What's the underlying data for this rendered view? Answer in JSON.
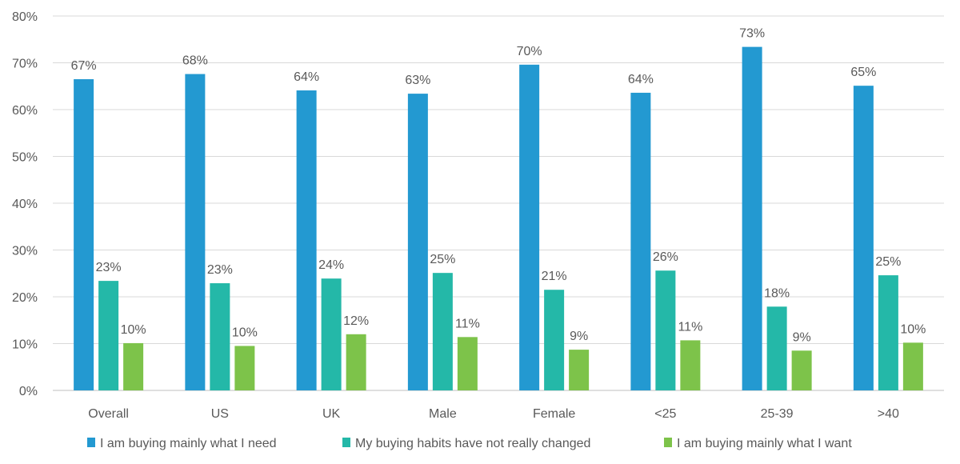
{
  "chart_data": {
    "type": "bar",
    "title": "",
    "xlabel": "",
    "ylabel": "",
    "ylim": [
      0,
      80
    ],
    "yticks": [
      0,
      10,
      20,
      30,
      40,
      50,
      60,
      70,
      80
    ],
    "ytick_labels": [
      "0%",
      "10%",
      "20%",
      "30%",
      "40%",
      "50%",
      "60%",
      "70%",
      "80%"
    ],
    "grid": true,
    "legend_position": "bottom",
    "categories": [
      "Overall",
      "US",
      "UK",
      "Male",
      "Female",
      "<25",
      "25-39",
      ">40"
    ],
    "series": [
      {
        "name": "I am buying mainly what I need",
        "color": "#2399d1",
        "values": [
          66.5,
          67.6,
          64.1,
          63.4,
          69.6,
          63.6,
          73.4,
          65.1
        ],
        "labels": [
          "67%",
          "68%",
          "64%",
          "63%",
          "70%",
          "64%",
          "73%",
          "65%"
        ]
      },
      {
        "name": "My buying habits have not really changed",
        "color": "#24b8a8",
        "values": [
          23.4,
          22.9,
          23.9,
          25.1,
          21.5,
          25.6,
          17.9,
          24.6
        ],
        "labels": [
          "23%",
          "23%",
          "24%",
          "25%",
          "21%",
          "26%",
          "18%",
          "25%"
        ]
      },
      {
        "name": "I am buying mainly what I want",
        "color": "#7dc34a",
        "values": [
          10.1,
          9.5,
          12.0,
          11.4,
          8.7,
          10.7,
          8.5,
          10.2
        ],
        "labels": [
          "10%",
          "10%",
          "12%",
          "11%",
          "9%",
          "11%",
          "9%",
          "10%"
        ]
      }
    ]
  }
}
